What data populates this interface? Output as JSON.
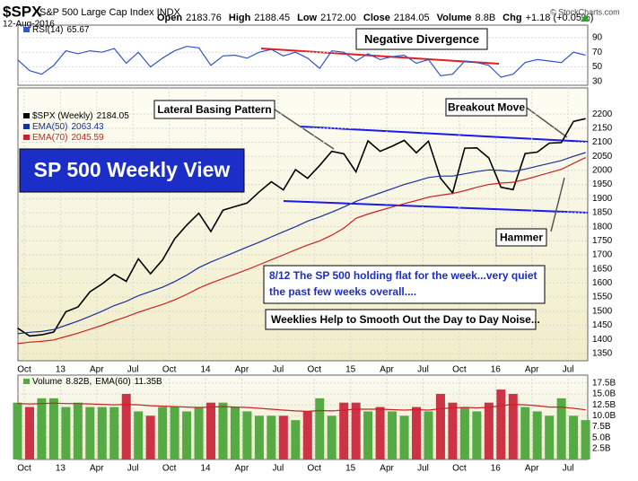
{
  "header": {
    "symbol": "$SPX",
    "name": "S&P 500 Large Cap Index INDX",
    "date": "12-Aug-2016",
    "copyright": "© StockCharts.com",
    "quotes": [
      {
        "label": "Open",
        "value": "2183.76"
      },
      {
        "label": "High",
        "value": "2188.45"
      },
      {
        "label": "Low",
        "value": "2172.00"
      },
      {
        "label": "Close",
        "value": "2184.05"
      },
      {
        "label": "Volume",
        "value": "8.8B"
      },
      {
        "label": "Chg",
        "value": "+1.18 (+0.05%)"
      }
    ]
  },
  "chart_data": [
    {
      "type": "line",
      "ylim": [
        25,
        107
      ],
      "yticks": [
        30,
        50,
        70,
        90
      ],
      "grid": true,
      "series": [
        {
          "name": "RSI(14)",
          "legend_value": 65.67,
          "color": "#3355cc",
          "values": [
            60,
            45,
            40,
            52,
            72,
            68,
            72,
            70,
            75,
            55,
            70,
            50,
            62,
            72,
            78,
            76,
            52,
            65,
            66,
            62,
            70,
            74,
            65,
            70,
            62,
            48,
            72,
            70,
            58,
            68,
            60,
            64,
            66,
            55,
            60,
            38,
            40,
            58,
            56,
            52,
            36,
            40,
            56,
            60,
            58,
            56,
            70,
            66
          ]
        }
      ],
      "annotations": [
        "Negative Divergence"
      ]
    },
    {
      "type": "line",
      "ylim": [
        1324,
        2293
      ],
      "yticks": [
        1350,
        1400,
        1450,
        1500,
        1550,
        1600,
        1650,
        1700,
        1750,
        1800,
        1850,
        1900,
        1950,
        2000,
        2050,
        2100,
        2150,
        2200
      ],
      "grid": true,
      "categories": [
        null,
        "Oct",
        null,
        null,
        "13",
        null,
        null,
        "Apr",
        null,
        null,
        "Jul",
        null,
        null,
        "Oct",
        null,
        null,
        "14",
        null,
        null,
        "Apr",
        null,
        null,
        "Jul",
        null,
        null,
        "Oct",
        null,
        null,
        "15",
        null,
        null,
        "Apr",
        null,
        null,
        "Jul",
        null,
        null,
        "Oct",
        null,
        null,
        "16",
        null,
        null,
        "Apr",
        null,
        null,
        "Jul",
        null
      ],
      "series": [
        {
          "name": "$SPX (Weekly)",
          "legend_value": 2184.05,
          "color": "#000000",
          "values": [
            1440,
            1412,
            1416,
            1426,
            1498,
            1515,
            1569,
            1597,
            1631,
            1606,
            1686,
            1633,
            1682,
            1757,
            1806,
            1848,
            1783,
            1859,
            1872,
            1884,
            1924,
            1960,
            1931,
            2003,
            1972,
            2018,
            2068,
            2059,
            1995,
            2105,
            2068,
            2086,
            2107,
            2063,
            2104,
            1972,
            1920,
            2079,
            2080,
            2044,
            1940,
            1932,
            2060,
            2065,
            2097,
            2099,
            2174,
            2184.05
          ]
        },
        {
          "name": "EMA(50)",
          "legend_value": 2063.43,
          "color": "#1a2fa0",
          "values": [
            1420,
            1425,
            1428,
            1435,
            1450,
            1465,
            1482,
            1500,
            1520,
            1535,
            1555,
            1570,
            1585,
            1605,
            1628,
            1655,
            1675,
            1692,
            1710,
            1728,
            1745,
            1764,
            1782,
            1800,
            1820,
            1835,
            1852,
            1870,
            1890,
            1905,
            1920,
            1935,
            1950,
            1962,
            1975,
            1980,
            1980,
            1988,
            1996,
            2002,
            2000,
            1996,
            2005,
            2015,
            2025,
            2035,
            2050,
            2063.43
          ]
        },
        {
          "name": "EMA(70)",
          "legend_value": 2045.59,
          "color": "#cc2222",
          "values": [
            1385,
            1390,
            1393,
            1398,
            1410,
            1422,
            1436,
            1450,
            1466,
            1480,
            1496,
            1510,
            1524,
            1540,
            1560,
            1582,
            1600,
            1616,
            1632,
            1648,
            1665,
            1683,
            1700,
            1718,
            1735,
            1750,
            1770,
            1795,
            1830,
            1845,
            1858,
            1870,
            1882,
            1893,
            1905,
            1912,
            1918,
            1928,
            1940,
            1950,
            1955,
            1958,
            1968,
            1980,
            1992,
            2004,
            2025,
            2045.59
          ]
        }
      ],
      "annotations": [
        "Lateral Basing Pattern",
        "Breakout Move",
        "SP 500 Weekly View",
        "Hammer",
        "8/12  The SP 500 holding flat for the week...very quiet",
        "the past few weeks overall....",
        "Weeklies Help to Smooth Out the Day to Day Noise..."
      ]
    },
    {
      "type": "bar",
      "ylim": [
        0,
        19.3
      ],
      "yticks": [
        {
          "value": 2.5,
          "label": "2.5B"
        },
        {
          "value": 5,
          "label": "5.0B"
        },
        {
          "value": 7.5,
          "label": "7.5B"
        },
        {
          "value": 10,
          "label": "10.0B"
        },
        {
          "value": 12.5,
          "label": "12.5B"
        },
        {
          "value": 15,
          "label": "15.0B"
        },
        {
          "value": 17.5,
          "label": "17.5B"
        }
      ],
      "grid": true,
      "categories": [
        null,
        "Oct",
        null,
        null,
        "13",
        null,
        null,
        "Apr",
        null,
        null,
        "Jul",
        null,
        null,
        "Oct",
        null,
        null,
        "14",
        null,
        null,
        "Apr",
        null,
        null,
        "Jul",
        null,
        null,
        "Oct",
        null,
        null,
        "15",
        null,
        null,
        "Apr",
        null,
        null,
        "Jul",
        null,
        null,
        "Oct",
        null,
        null,
        "16",
        null,
        null,
        "Apr",
        null,
        null,
        "Jul",
        null
      ],
      "series": [
        {
          "name": "Volume",
          "legend_value": "8.82B,",
          "up_color": "#55aa44",
          "down_color": "#cc3344",
          "values": [
            13,
            12,
            14,
            14,
            12,
            13,
            12,
            12,
            12,
            15,
            11,
            10,
            12,
            12,
            11,
            12,
            13,
            13,
            12,
            11,
            10,
            10,
            10,
            9,
            11,
            14,
            10,
            13,
            13,
            11,
            12,
            11,
            10,
            12,
            11,
            15,
            13,
            12,
            11,
            13,
            16,
            15,
            12,
            11,
            10,
            14,
            10,
            9
          ]
        },
        {
          "name": "EMA(60)",
          "legend_value": "11.35B",
          "color": "#cc2222",
          "values": [
            12.8,
            12.7,
            12.8,
            12.9,
            12.8,
            12.8,
            12.7,
            12.6,
            12.5,
            12.6,
            12.5,
            12.3,
            12.2,
            12.1,
            12.0,
            11.9,
            12.0,
            12.1,
            12.0,
            11.9,
            11.7,
            11.5,
            11.3,
            11.1,
            11.0,
            11.2,
            11.1,
            11.3,
            11.5,
            11.5,
            11.5,
            11.4,
            11.3,
            11.4,
            11.3,
            11.6,
            11.8,
            11.9,
            11.8,
            11.9,
            12.3,
            12.6,
            12.5,
            12.3,
            12.0,
            12.0,
            11.7,
            11.35
          ]
        }
      ]
    }
  ]
}
